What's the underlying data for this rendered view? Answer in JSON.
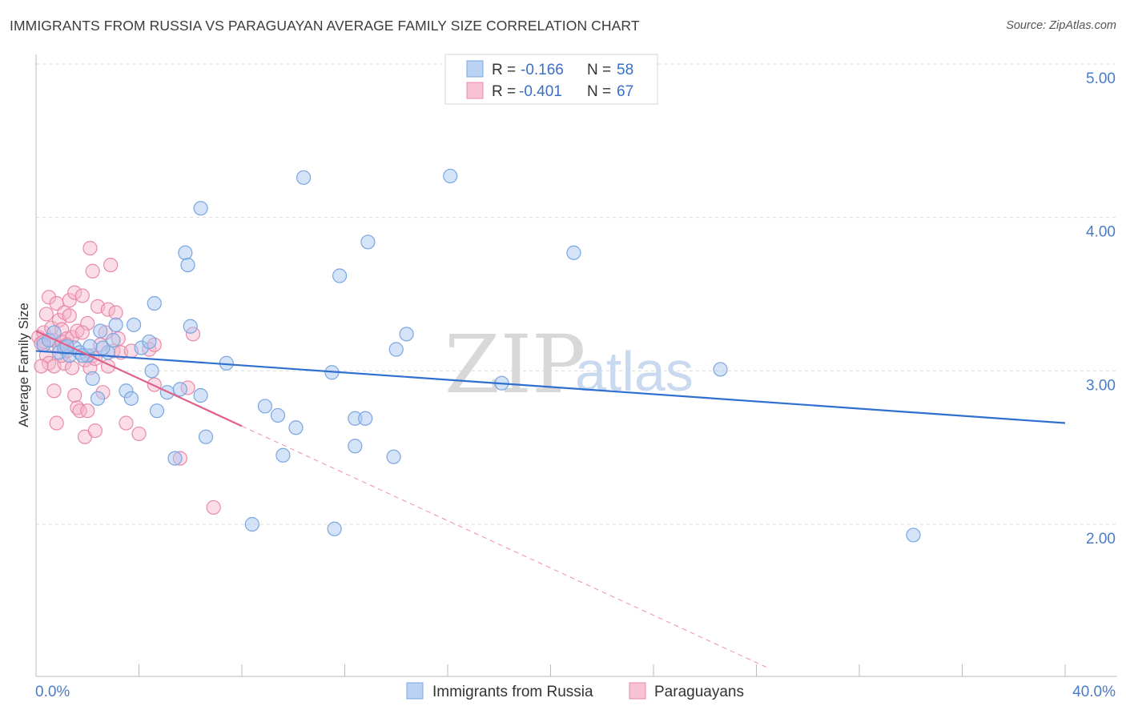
{
  "header": {
    "title": "IMMIGRANTS FROM RUSSIA VS PARAGUAYAN AVERAGE FAMILY SIZE CORRELATION CHART",
    "source": "Source: ZipAtlas.com"
  },
  "colors": {
    "russia_fill": "#aac8f0",
    "russia_stroke": "#7aa6e0",
    "russia_line": "#2f6fd0",
    "paraguay_fill": "#f5b3c8",
    "paraguay_stroke": "#e98aab",
    "paraguay_line": "#e0608a",
    "grid": "#dcdcdc",
    "tick_text": "#4a7cc7"
  },
  "legend_top": {
    "russia": {
      "r_label": "R = ",
      "r_value": "-0.166",
      "n_label": "N = ",
      "n_value": "58"
    },
    "paraguay": {
      "r_label": "R = ",
      "r_value": "-0.401",
      "n_label": "N = ",
      "n_value": "67"
    }
  },
  "watermark": {
    "zip": "ZIP",
    "atlas": "atlas"
  },
  "chart_data": {
    "type": "scatter",
    "title": "IMMIGRANTS FROM RUSSIA VS PARAGUAYAN AVERAGE FAMILY SIZE CORRELATION CHART",
    "xlabel": "",
    "ylabel": "Average Family Size",
    "xlim": [
      0,
      40
    ],
    "ylim": [
      1.05,
      5.1
    ],
    "x_tick_labels": [
      "0.0%",
      "40.0%"
    ],
    "y_ticks": [
      2.0,
      3.0,
      4.0,
      5.0
    ],
    "y_tick_labels": [
      "2.00",
      "3.00",
      "4.00",
      "5.00"
    ],
    "grid": true,
    "legend_position": "bottom-center",
    "series": [
      {
        "name": "Immigrants from Russia",
        "color": "#aac8f0",
        "trend": {
          "x": [
            0.0,
            40.0
          ],
          "y": [
            3.13,
            2.66
          ]
        },
        "points": [
          [
            0.3,
            3.17
          ],
          [
            0.5,
            3.2
          ],
          [
            0.7,
            3.25
          ],
          [
            0.9,
            3.12
          ],
          [
            1.1,
            3.15
          ],
          [
            1.3,
            3.1
          ],
          [
            1.5,
            3.15
          ],
          [
            1.7,
            3.12
          ],
          [
            2.0,
            3.1
          ],
          [
            2.2,
            2.95
          ],
          [
            2.5,
            3.26
          ],
          [
            2.8,
            3.12
          ],
          [
            3.1,
            3.3
          ],
          [
            3.5,
            2.87
          ],
          [
            3.8,
            3.3
          ],
          [
            4.1,
            3.15
          ],
          [
            4.5,
            3.0
          ],
          [
            4.7,
            2.74
          ],
          [
            5.1,
            2.86
          ],
          [
            5.4,
            2.43
          ],
          [
            5.8,
            3.77
          ],
          [
            6.0,
            3.29
          ],
          [
            6.4,
            2.84
          ],
          [
            6.4,
            4.06
          ],
          [
            6.6,
            2.57
          ],
          [
            7.4,
            3.05
          ],
          [
            8.4,
            2.0
          ],
          [
            8.9,
            2.77
          ],
          [
            9.4,
            2.71
          ],
          [
            9.6,
            2.45
          ],
          [
            10.1,
            2.63
          ],
          [
            10.4,
            4.26
          ],
          [
            11.5,
            2.99
          ],
          [
            11.6,
            1.97
          ],
          [
            11.8,
            3.62
          ],
          [
            12.4,
            2.69
          ],
          [
            12.4,
            2.51
          ],
          [
            12.8,
            2.69
          ],
          [
            12.9,
            3.84
          ],
          [
            13.9,
            2.44
          ],
          [
            14.4,
            3.24
          ],
          [
            16.1,
            4.27
          ],
          [
            18.1,
            2.92
          ],
          [
            20.9,
            3.77
          ],
          [
            26.6,
            3.01
          ],
          [
            34.1,
            1.93
          ],
          [
            2.6,
            3.15
          ],
          [
            3.0,
            3.2
          ],
          [
            1.8,
            3.1
          ],
          [
            2.4,
            2.82
          ],
          [
            4.6,
            3.44
          ],
          [
            5.6,
            2.88
          ],
          [
            4.4,
            3.19
          ],
          [
            5.9,
            3.69
          ],
          [
            3.7,
            2.82
          ],
          [
            2.1,
            3.16
          ],
          [
            14.0,
            3.14
          ],
          [
            1.2,
            3.16
          ]
        ]
      },
      {
        "name": "Paraguayans",
        "color": "#f5b3c8",
        "trend": {
          "x": [
            0.0,
            8.0
          ],
          "y": [
            3.26,
            2.64
          ]
        },
        "trend_dashed": {
          "x": [
            8.0,
            28.5
          ],
          "y": [
            2.64,
            1.06
          ]
        },
        "points": [
          [
            0.1,
            3.22
          ],
          [
            0.2,
            3.18
          ],
          [
            0.3,
            3.25
          ],
          [
            0.4,
            3.1
          ],
          [
            0.5,
            3.05
          ],
          [
            0.5,
            3.48
          ],
          [
            0.6,
            3.2
          ],
          [
            0.6,
            3.28
          ],
          [
            0.7,
            3.03
          ],
          [
            0.7,
            2.87
          ],
          [
            0.8,
            3.44
          ],
          [
            0.8,
            2.66
          ],
          [
            0.9,
            3.16
          ],
          [
            0.9,
            3.33
          ],
          [
            1.0,
            3.27
          ],
          [
            1.0,
            3.19
          ],
          [
            1.1,
            3.05
          ],
          [
            1.1,
            3.38
          ],
          [
            1.2,
            3.21
          ],
          [
            1.2,
            3.13
          ],
          [
            1.3,
            3.36
          ],
          [
            1.3,
            3.46
          ],
          [
            1.4,
            3.22
          ],
          [
            1.4,
            3.02
          ],
          [
            1.5,
            2.84
          ],
          [
            1.5,
            3.51
          ],
          [
            1.6,
            3.26
          ],
          [
            1.6,
            2.76
          ],
          [
            1.7,
            2.74
          ],
          [
            1.8,
            3.49
          ],
          [
            1.9,
            2.57
          ],
          [
            1.9,
            3.07
          ],
          [
            2.0,
            2.74
          ],
          [
            2.0,
            3.31
          ],
          [
            2.1,
            3.02
          ],
          [
            2.1,
            3.8
          ],
          [
            2.2,
            3.65
          ],
          [
            2.2,
            3.1
          ],
          [
            2.3,
            2.61
          ],
          [
            2.4,
            3.42
          ],
          [
            2.5,
            3.17
          ],
          [
            2.6,
            2.86
          ],
          [
            2.7,
            3.25
          ],
          [
            2.8,
            3.4
          ],
          [
            2.8,
            3.03
          ],
          [
            2.9,
            3.69
          ],
          [
            3.0,
            3.13
          ],
          [
            3.1,
            3.38
          ],
          [
            3.2,
            3.21
          ],
          [
            3.3,
            3.12
          ],
          [
            3.5,
            2.66
          ],
          [
            3.7,
            3.13
          ],
          [
            4.0,
            2.59
          ],
          [
            4.4,
            3.14
          ],
          [
            4.6,
            2.91
          ],
          [
            4.6,
            3.17
          ],
          [
            5.6,
            2.43
          ],
          [
            5.9,
            2.89
          ],
          [
            6.1,
            3.24
          ],
          [
            6.9,
            2.11
          ],
          [
            0.3,
            3.19
          ],
          [
            0.4,
            3.37
          ],
          [
            0.2,
            3.03
          ],
          [
            1.2,
            3.17
          ],
          [
            1.8,
            3.25
          ],
          [
            2.3,
            3.08
          ],
          [
            1.0,
            3.1
          ]
        ]
      }
    ]
  }
}
